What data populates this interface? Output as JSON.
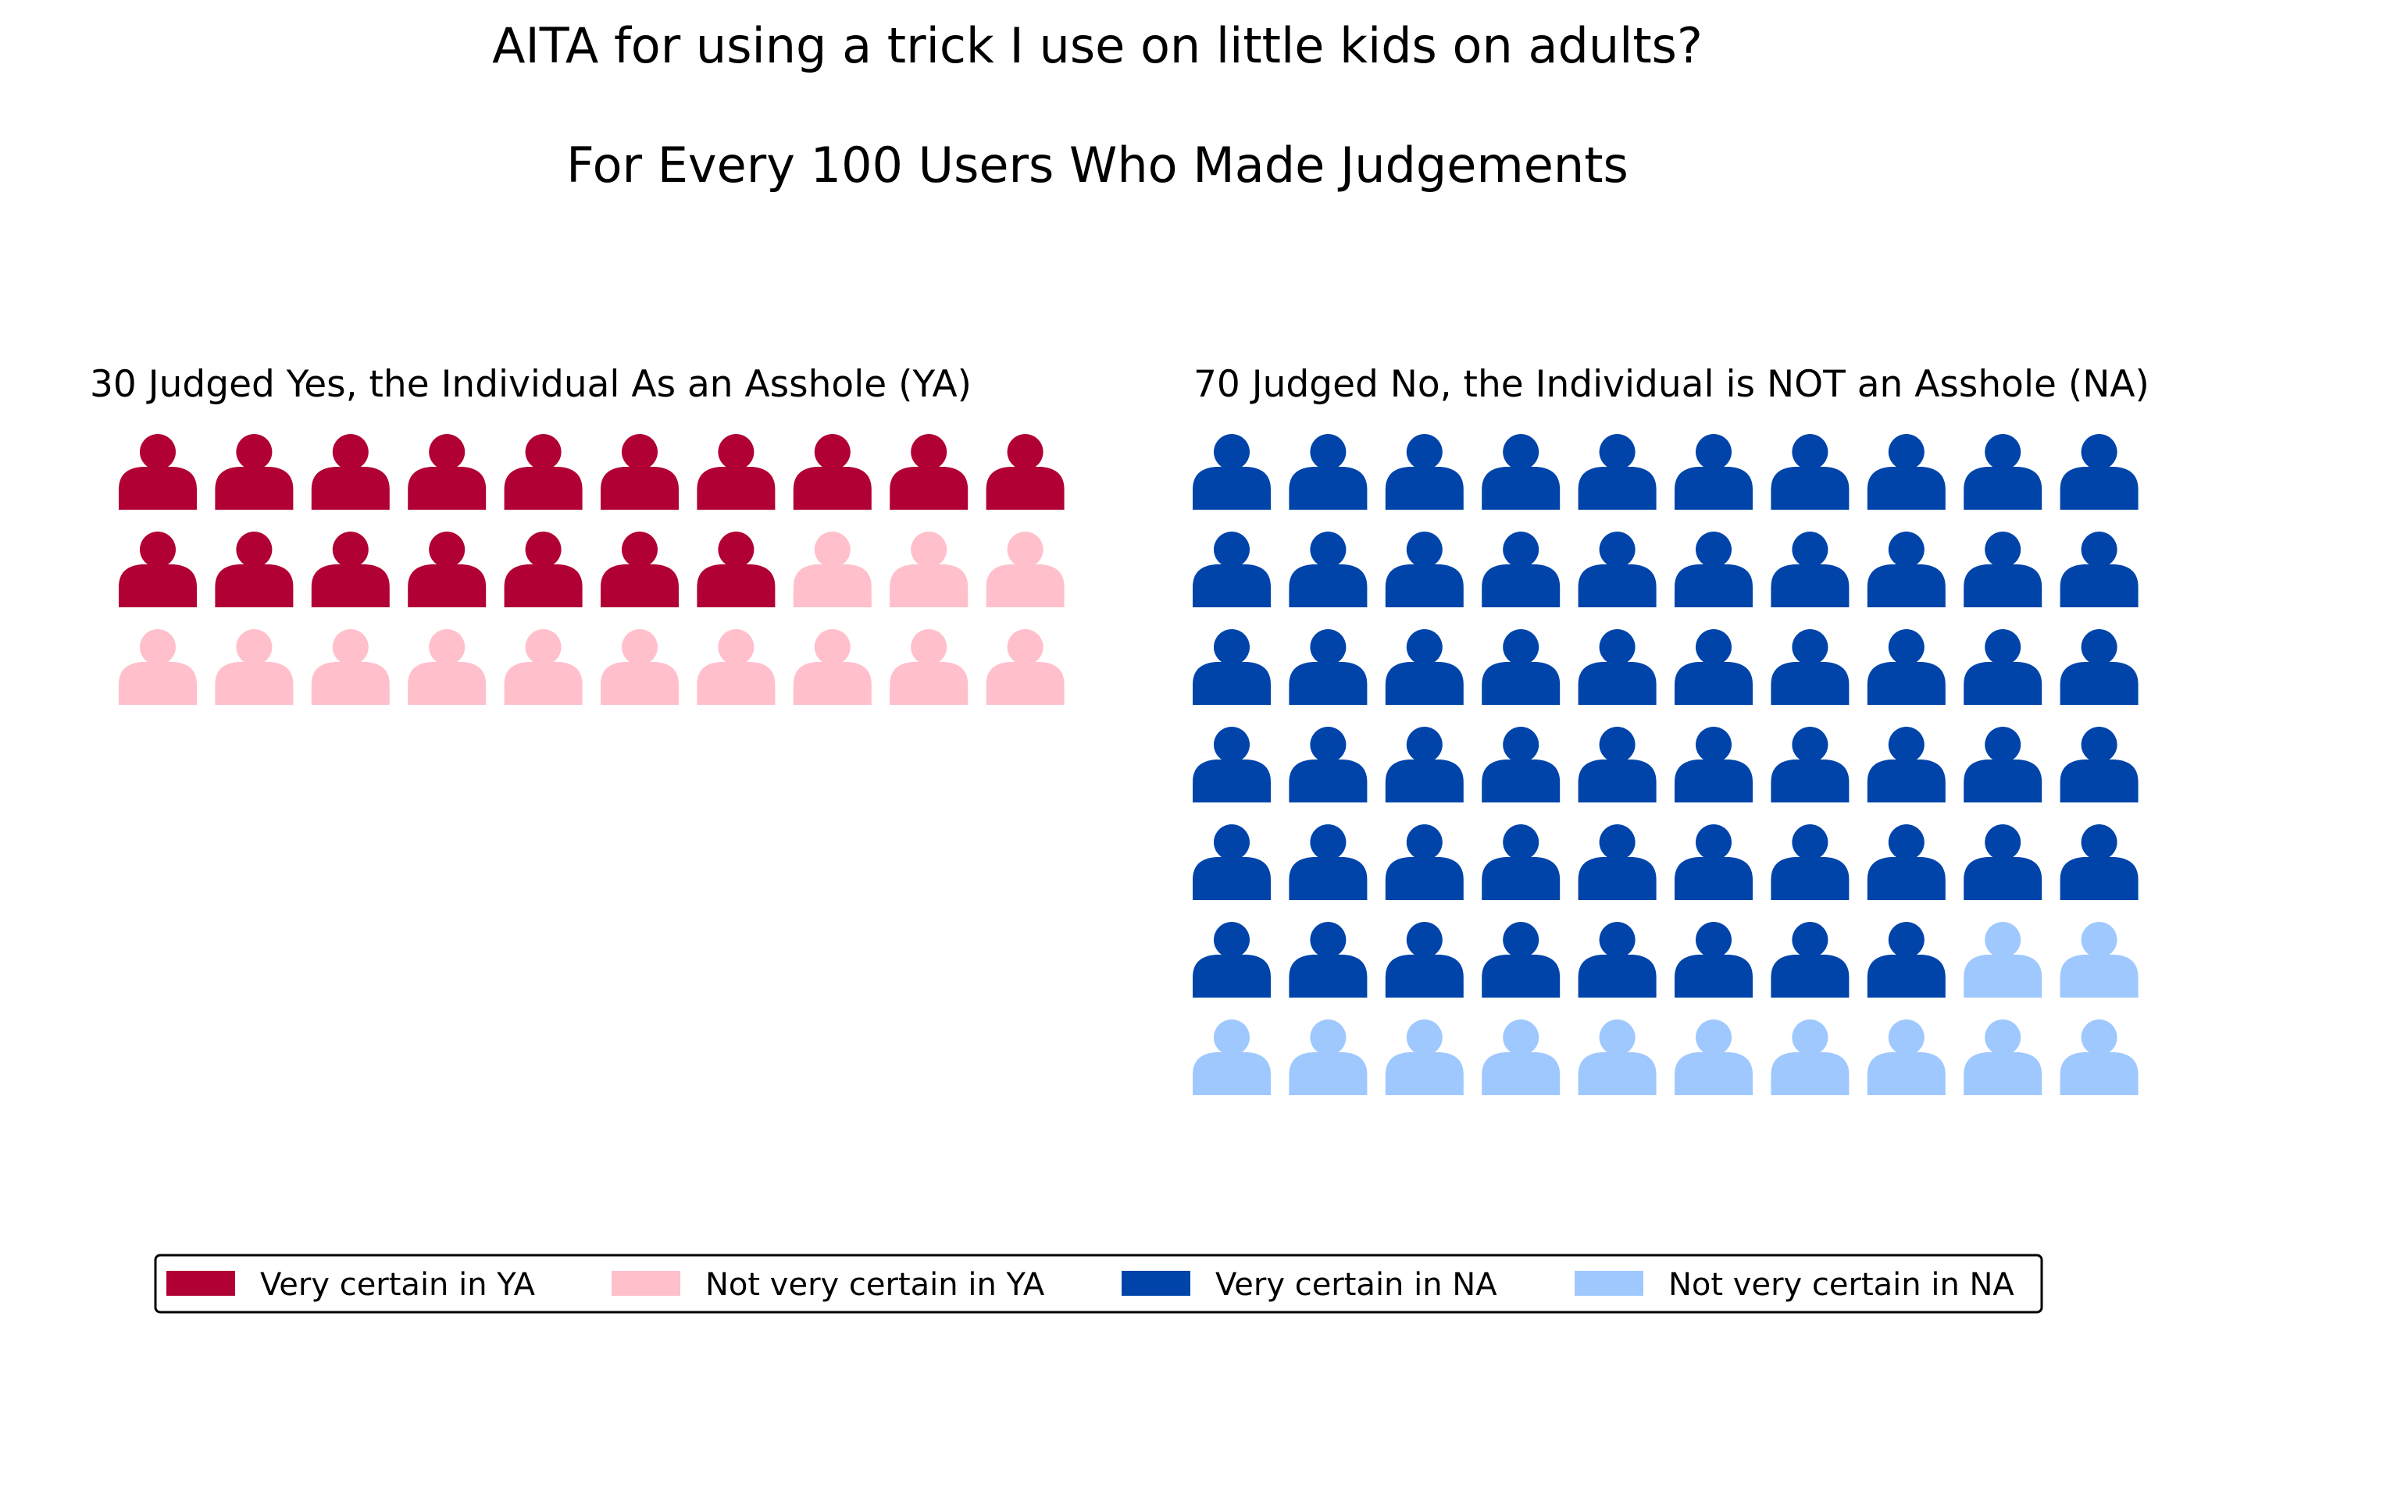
{
  "chart_data": {
    "type": "pictogram",
    "title": "AITA for using a trick I use on little kids on adults?",
    "subtitle": "For Every 100 Users Who Made Judgements",
    "icon": "person-icon",
    "icons_per_row": 10,
    "panels": [
      {
        "title": "30 Judged Yes, the Individual As an Asshole (YA)",
        "total": 30,
        "series": [
          {
            "name": "Very certain in YA",
            "value": 17,
            "color": "#b10034"
          },
          {
            "name": "Not very certain in YA",
            "value": 13,
            "color": "#ffc0cb"
          }
        ]
      },
      {
        "title": "70 Judged No, the Individual is NOT an Asshole (NA)",
        "total": 70,
        "series": [
          {
            "name": "Very certain in NA",
            "value": 58,
            "color": "#0044aa"
          },
          {
            "name": "Not very certain in NA",
            "value": 12,
            "color": "#9fc8ff"
          }
        ]
      }
    ],
    "legend": {
      "placement": "bottom",
      "entries": [
        {
          "label": "Very certain in YA",
          "color": "#b10034"
        },
        {
          "label": "Not very certain in YA",
          "color": "#ffc0cb"
        },
        {
          "label": "Very certain in NA",
          "color": "#0044aa"
        },
        {
          "label": "Not very certain in NA",
          "color": "#9fc8ff"
        }
      ]
    }
  }
}
